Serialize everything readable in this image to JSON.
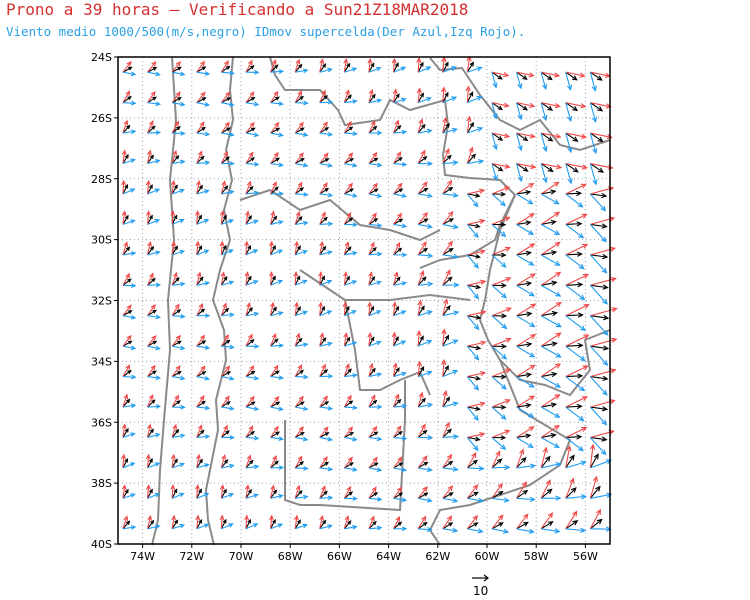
{
  "title": "Prono a 39 horas — Verificando a Sun21Z18MAR2018",
  "subtitle": "Viento medio 1000/500(m/s,negro) IDmov supercelda(Der Azul,Izq Rojo).",
  "map": {
    "lon_range": [
      -75,
      -55
    ],
    "lat_range": [
      -40,
      -24
    ],
    "grid": "dotted 2-degree graticule",
    "x_ticks": [
      "74W",
      "72W",
      "70W",
      "68W",
      "66W",
      "64W",
      "62W",
      "60W",
      "58W",
      "56W"
    ],
    "y_ticks": [
      "24S",
      "26S",
      "28S",
      "30S",
      "32S",
      "34S",
      "36S",
      "38S",
      "40S"
    ],
    "colors": {
      "mean_wind": "#000000",
      "right_mover": "#1f9cf0",
      "left_mover": "#f04848",
      "boundaries": "#8a8a8a",
      "grid": "#9aa0b6"
    },
    "reference_vector": {
      "label": "10",
      "units": "m/s"
    }
  }
}
